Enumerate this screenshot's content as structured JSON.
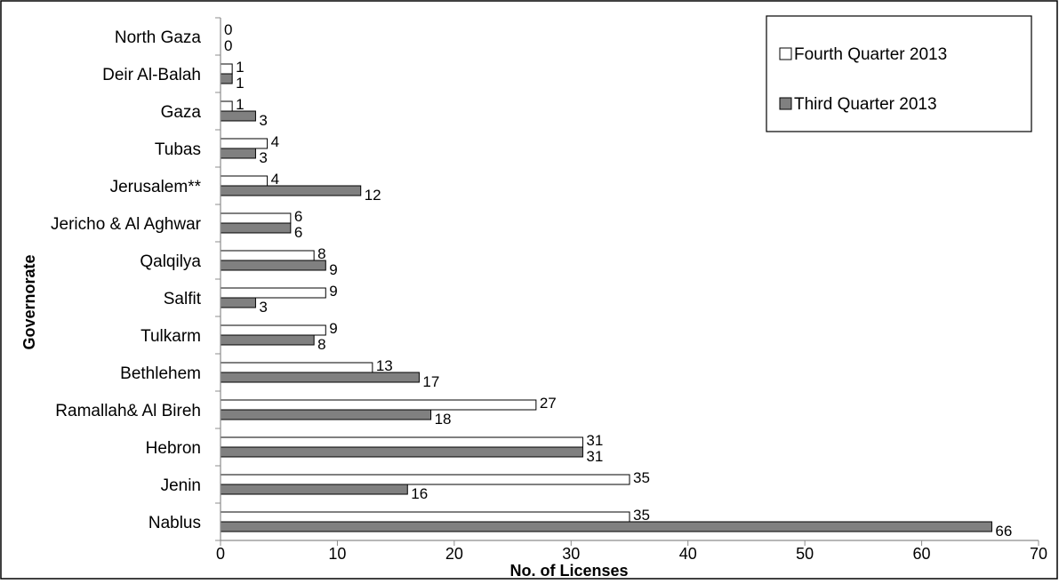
{
  "chart_data": {
    "type": "bar",
    "orientation": "horizontal",
    "categories": [
      "Nablus",
      "Jenin",
      "Hebron",
      "Ramallah& Al Bireh",
      "Bethlehem",
      "Tulkarm",
      "Salfit",
      "Qalqilya",
      "Jericho & Al Aghwar",
      "Jerusalem**",
      "Tubas",
      "Gaza",
      "Deir Al-Balah",
      "North Gaza"
    ],
    "series": [
      {
        "name": "Fourth Quarter 2013",
        "color": "#ffffff",
        "values": [
          35,
          35,
          31,
          27,
          13,
          9,
          9,
          8,
          6,
          4,
          4,
          1,
          1,
          0
        ]
      },
      {
        "name": "Third Quarter 2013",
        "color": "#808080",
        "values": [
          66,
          16,
          31,
          18,
          17,
          8,
          3,
          9,
          6,
          12,
          3,
          3,
          1,
          0
        ]
      }
    ],
    "xlabel": "No. of Licenses",
    "ylabel": "Governorate",
    "xlim": [
      0,
      70
    ],
    "xticks": [
      0,
      10,
      20,
      30,
      40,
      50,
      60,
      70
    ],
    "grid": false,
    "legend_position": "top-right"
  }
}
